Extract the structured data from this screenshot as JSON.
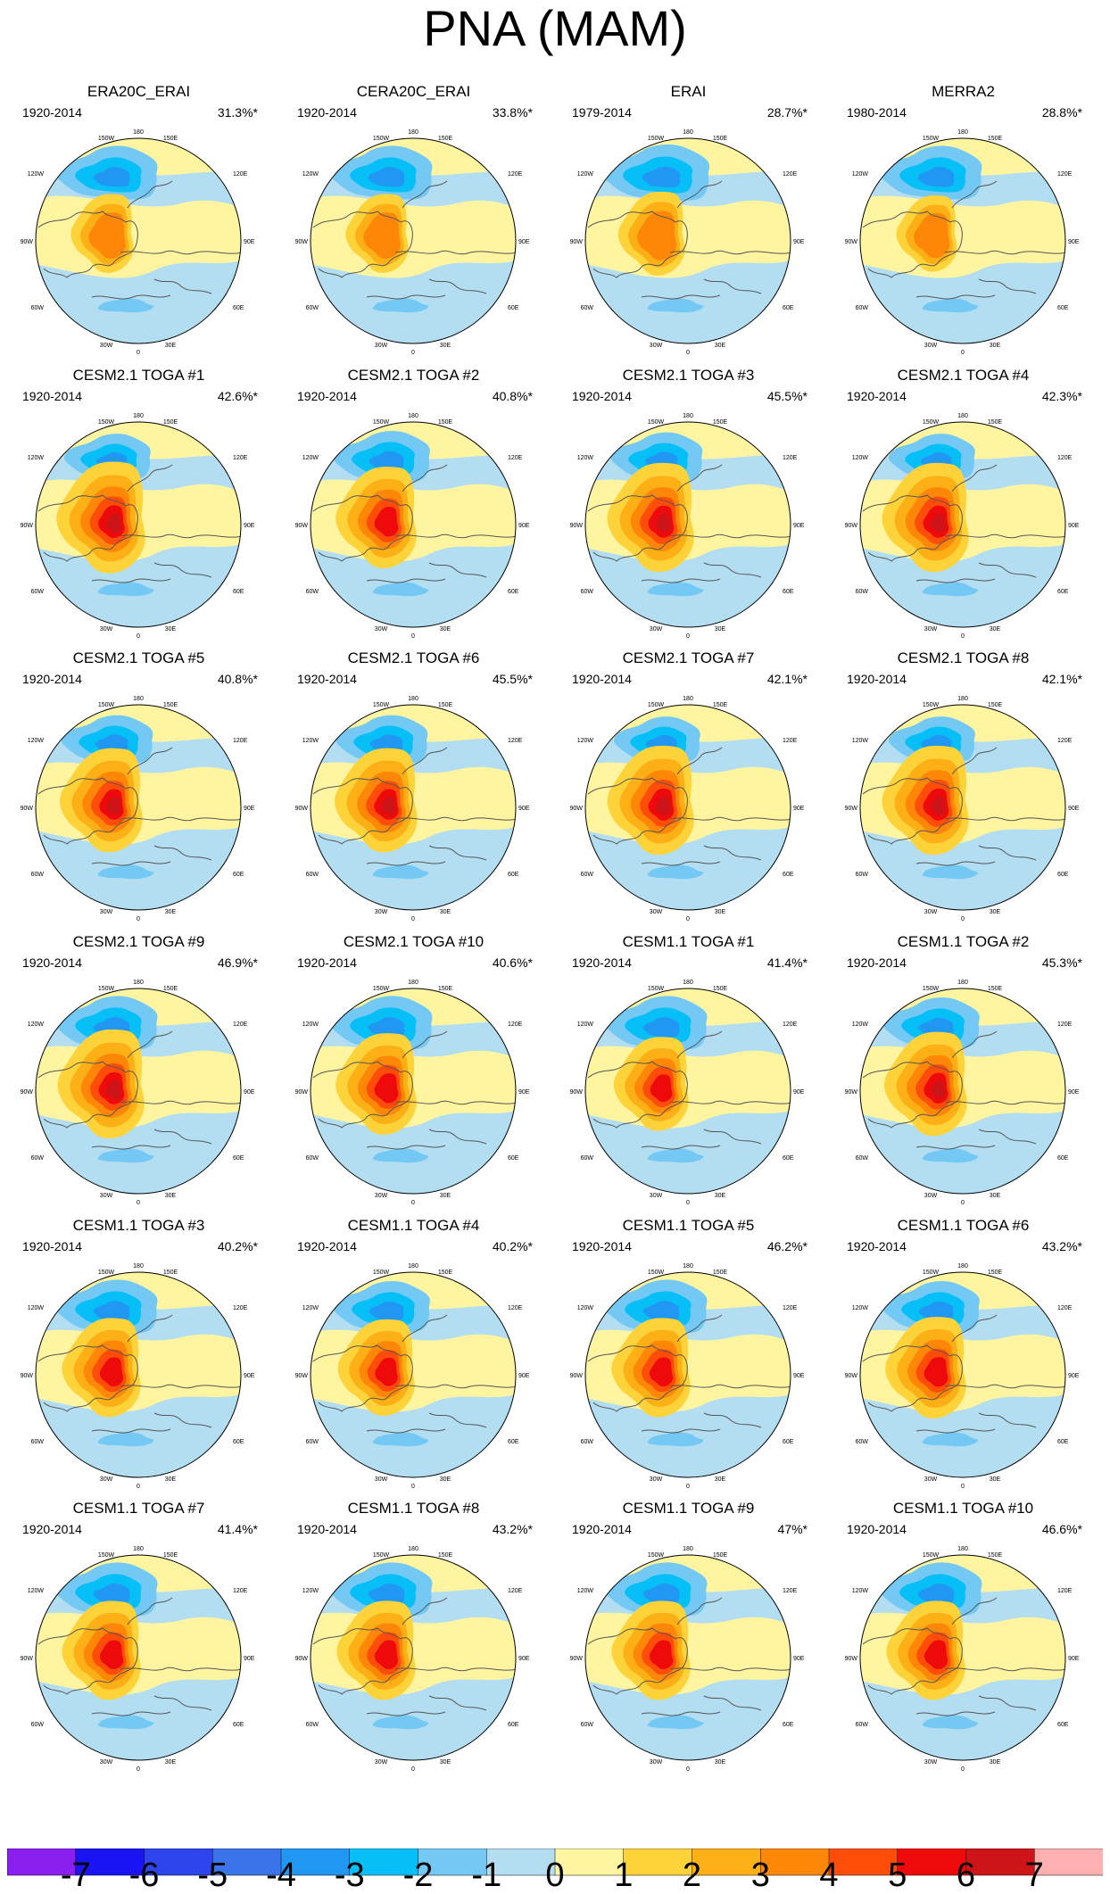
{
  "title": "PNA (MAM)",
  "axis_labels": {
    "top": "180",
    "top_left": "150W",
    "top_right": "150E",
    "upper_left": "120W",
    "upper_right": "120E",
    "left": "90W",
    "right": "90E",
    "lower_left": "60W",
    "lower_right": "60E",
    "bottom_left": "30W",
    "bottom_right": "30E",
    "bottom": "0"
  },
  "panels": [
    {
      "title": "ERA20C_ERAI",
      "years": "1920-2014",
      "pct": "31.3%*",
      "intensity": 0.35,
      "neg": 1.0
    },
    {
      "title": "CERA20C_ERAI",
      "years": "1920-2014",
      "pct": "33.8%*",
      "intensity": 0.35,
      "neg": 1.0
    },
    {
      "title": "ERAI",
      "years": "1979-2014",
      "pct": "28.7%*",
      "intensity": 0.45,
      "neg": 1.05
    },
    {
      "title": "MERRA2",
      "years": "1980-2014",
      "pct": "28.8%*",
      "intensity": 0.3,
      "neg": 1.0
    },
    {
      "title": "CESM2.1 TOGA #1",
      "years": "1920-2014",
      "pct": "42.6%*",
      "intensity": 1.0,
      "neg": 0.85
    },
    {
      "title": "CESM2.1 TOGA #2",
      "years": "1920-2014",
      "pct": "40.8%*",
      "intensity": 0.8,
      "neg": 0.95
    },
    {
      "title": "CESM2.1 TOGA #3",
      "years": "1920-2014",
      "pct": "45.5%*",
      "intensity": 0.95,
      "neg": 0.9
    },
    {
      "title": "CESM2.1 TOGA #4",
      "years": "1920-2014",
      "pct": "42.3%*",
      "intensity": 0.95,
      "neg": 0.85
    },
    {
      "title": "CESM2.1 TOGA #5",
      "years": "1920-2014",
      "pct": "40.8%*",
      "intensity": 0.85,
      "neg": 0.9
    },
    {
      "title": "CESM2.1 TOGA #6",
      "years": "1920-2014",
      "pct": "45.5%*",
      "intensity": 0.85,
      "neg": 0.9
    },
    {
      "title": "CESM2.1 TOGA #7",
      "years": "1920-2014",
      "pct": "42.1%*",
      "intensity": 0.95,
      "neg": 0.85
    },
    {
      "title": "CESM2.1 TOGA #8",
      "years": "1920-2014",
      "pct": "42.1%*",
      "intensity": 0.95,
      "neg": 0.85
    },
    {
      "title": "CESM2.1 TOGA #9",
      "years": "1920-2014",
      "pct": "46.9%*",
      "intensity": 0.95,
      "neg": 1.0
    },
    {
      "title": "CESM2.1 TOGA #10",
      "years": "1920-2014",
      "pct": "40.6%*",
      "intensity": 0.8,
      "neg": 1.0
    },
    {
      "title": "CESM1.1 TOGA #1",
      "years": "1920-2014",
      "pct": "41.4%*",
      "intensity": 0.65,
      "neg": 1.0
    },
    {
      "title": "CESM1.1 TOGA #2",
      "years": "1920-2014",
      "pct": "45.3%*",
      "intensity": 0.85,
      "neg": 0.95
    },
    {
      "title": "CESM1.1 TOGA #3",
      "years": "1920-2014",
      "pct": "40.2%*",
      "intensity": 0.75,
      "neg": 1.0
    },
    {
      "title": "CESM1.1 TOGA #4",
      "years": "1920-2014",
      "pct": "40.2%*",
      "intensity": 0.7,
      "neg": 0.95
    },
    {
      "title": "CESM1.1 TOGA #5",
      "years": "1920-2014",
      "pct": "46.2%*",
      "intensity": 0.75,
      "neg": 1.0
    },
    {
      "title": "CESM1.1 TOGA #6",
      "years": "1920-2014",
      "pct": "43.2%*",
      "intensity": 0.8,
      "neg": 0.95
    },
    {
      "title": "CESM1.1 TOGA #7",
      "years": "1920-2014",
      "pct": "41.4%*",
      "intensity": 0.75,
      "neg": 1.0
    },
    {
      "title": "CESM1.1 TOGA #8",
      "years": "1920-2014",
      "pct": "43.2%*",
      "intensity": 0.75,
      "neg": 1.0
    },
    {
      "title": "CESM1.1 TOGA #9",
      "years": "1920-2014",
      "pct": "47%*",
      "intensity": 0.75,
      "neg": 1.0
    },
    {
      "title": "CESM1.1 TOGA #10",
      "years": "1920-2014",
      "pct": "46.6%*",
      "intensity": 0.75,
      "neg": 1.0
    }
  ],
  "colorbar": {
    "labels": [
      "-7",
      "-6",
      "-5",
      "-4",
      "-3",
      "-2",
      "-1",
      "0",
      "1",
      "2",
      "3",
      "4",
      "5",
      "6",
      "7"
    ],
    "colors": [
      "#8a1ff0",
      "#1a14f5",
      "#2e44ec",
      "#3b74ea",
      "#2197f4",
      "#06bff7",
      "#74c9f4",
      "#b3def2",
      "#fff5a0",
      "#fed33a",
      "#fdaf16",
      "#fe8708",
      "#fe4c09",
      "#ee0a0a",
      "#cd1418",
      "#fcb0b0"
    ]
  },
  "palette": {
    "neg3": "#2197f4",
    "neg2": "#06bff7",
    "neg1": "#74c9f4",
    "neg0": "#b3def2",
    "pos0": "#fff5a0",
    "pos1": "#fed33a",
    "pos2": "#fdaf16",
    "pos3": "#fe8708",
    "pos4": "#fe4c09",
    "pos5": "#ee0a0a",
    "pos6": "#cd1418",
    "coast": "#555555"
  }
}
